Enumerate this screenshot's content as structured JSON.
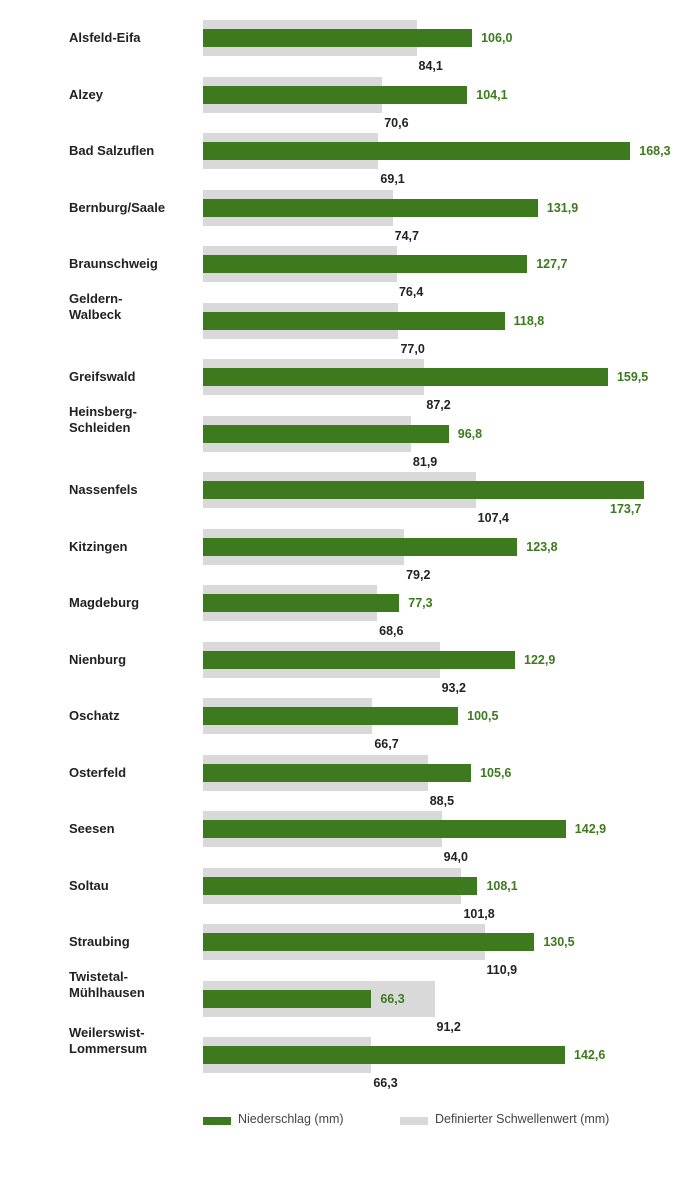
{
  "chart_data": {
    "type": "bar",
    "orientation": "horizontal",
    "categories": [
      "Alsfeld-Eifa",
      "Alzey",
      "Bad Salzuflen",
      "Bernburg/Saale",
      "Braunschweig",
      "Geldern-Walbeck",
      "Greifswald",
      "Heinsberg-Schleiden",
      "Nassenfels",
      "Kitzingen",
      "Magdeburg",
      "Nienburg",
      "Oschatz",
      "Osterfeld",
      "Seesen",
      "Soltau",
      "Straubing",
      "Twistetal-Mühlhausen",
      "Weilerswist-Lommersum"
    ],
    "category_labels": [
      [
        "Alsfeld-Eifa"
      ],
      [
        "Alzey"
      ],
      [
        "Bad Salzuflen"
      ],
      [
        "Bernburg/Saale"
      ],
      [
        "Braunschweig"
      ],
      [
        "Geldern-",
        "Walbeck"
      ],
      [
        "Greifswald"
      ],
      [
        "Heinsberg-",
        "Schleiden"
      ],
      [
        "Nassenfels"
      ],
      [
        "Kitzingen"
      ],
      [
        "Magdeburg"
      ],
      [
        "Nienburg"
      ],
      [
        "Oschatz"
      ],
      [
        "Osterfeld"
      ],
      [
        "Seesen"
      ],
      [
        "Soltau"
      ],
      [
        "Straubing"
      ],
      [
        "Twistetal-",
        "Mühlhausen"
      ],
      [
        "Weilerswist-",
        "Lommersum"
      ]
    ],
    "series": [
      {
        "name": "Niederschlag (mm)",
        "color": "#3d7a1e",
        "values": [
          106.0,
          104.1,
          168.3,
          131.9,
          127.7,
          118.8,
          159.5,
          96.8,
          173.7,
          123.8,
          77.3,
          122.9,
          100.5,
          105.6,
          142.9,
          108.1,
          130.5,
          66.3,
          142.6
        ],
        "labels": [
          "106,0",
          "104,1",
          "168,3",
          "131,9",
          "127,7",
          "118,8",
          "159,5",
          "96,8",
          "173,7",
          "123,8",
          "77,3",
          "122,9",
          "100,5",
          "105,6",
          "142,9",
          "108,1",
          "130,5",
          "66,3",
          "142,6"
        ]
      },
      {
        "name": "Definierter Schwellenwert (mm)",
        "color": "#d9d9d9",
        "values": [
          84.1,
          70.6,
          69.1,
          74.7,
          76.4,
          77.0,
          87.2,
          81.9,
          107.4,
          79.2,
          68.6,
          93.2,
          66.7,
          88.5,
          94.0,
          101.8,
          110.9,
          91.2,
          66.3
        ],
        "labels": [
          "84,1",
          "70,6",
          "69,1",
          "74,7",
          "76,4",
          "77,0",
          "87,2",
          "81,9",
          "107,4",
          "79,2",
          "68,6",
          "93,2",
          "66,7",
          "88,5",
          "94,0",
          "101,8",
          "110,9",
          "91,2",
          "66,3"
        ]
      }
    ],
    "xlim": [
      0,
      173.7
    ],
    "grid": false,
    "legend_position": "bottom"
  },
  "legend": {
    "precip_label": "Niederschlag (mm)",
    "threshold_label": "Definierter Schwellenwert (mm)"
  }
}
